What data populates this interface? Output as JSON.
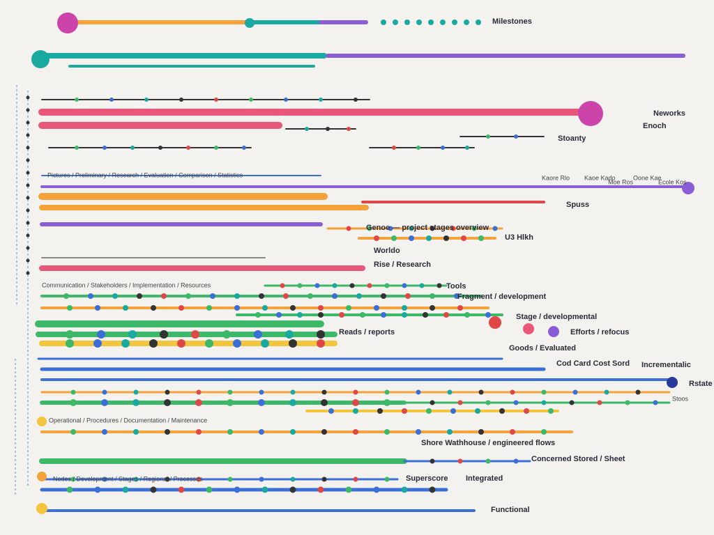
{
  "labels": {
    "top": "Milestones",
    "enoch": "Enoch",
    "neworks": "Neworks",
    "stoanty": "Stoanty",
    "row1": "Kaore Rlo",
    "row2": "Kaoe Kado",
    "row3": "Moe Ros",
    "row4": "Oone Kae",
    "row5": "Ecole Kos",
    "spuss": "Spuss",
    "genoe": "Genoe — project stages overview",
    "uo": "U3 Hlkh",
    "wordlo": "Worldo",
    "rise": "Rise / Research",
    "tools": "Tools",
    "fragment": "Fragment / development",
    "stage": "Stage / developmental",
    "effort": "Efforts / refocus",
    "reads": "Reads / reports",
    "goods": "Goods / Evaluated",
    "cod": "Cod  Card  Cost  Sord",
    "interest": "Incrementalic",
    "state": "Rstate",
    "stoo": "Stoos",
    "shore": "Shore Wathhouse / engineered flows",
    "process": "Concerned Stored / Sheet",
    "super": "Superscore",
    "integrated": "Integrated",
    "functional": "Functional",
    "notes1": "Pictures / Preliminary / Research / Evaluation / Comparison / Statistics",
    "notes2": "Communication / Stakeholders / Implementation / Resources",
    "notes3": "Operational / Procedures / Documentation / Maintenance",
    "notes4": "Nodes / Development / Stages / Regional / Processes"
  }
}
